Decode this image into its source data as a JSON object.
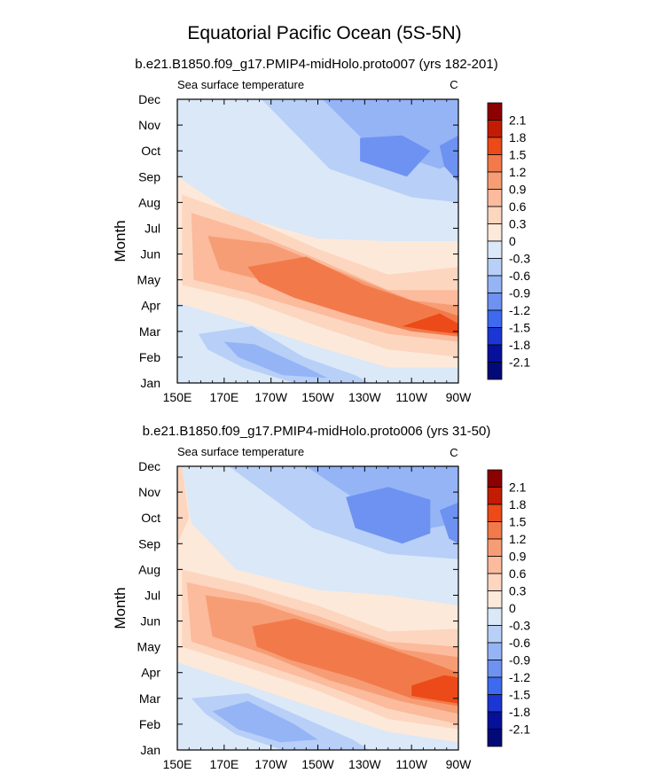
{
  "figure": {
    "title": "Equatorial Pacific Ocean (5S-5N)"
  },
  "chart_data": [
    {
      "type": "heatmap",
      "subtitle": "b.e21.B1850.f09_g17.PMIP4-midHolo.proto007 (yrs 182-201)",
      "variable_label": "Sea surface temperature",
      "units": "C",
      "ylabel": "Month",
      "xlabel": "",
      "x_ticks": [
        "150E",
        "170E",
        "170W",
        "150W",
        "130W",
        "110W",
        "90W"
      ],
      "x_tick_values": [
        150,
        170,
        190,
        210,
        230,
        250,
        270
      ],
      "xlim": [
        150,
        270
      ],
      "y_ticks": [
        "Jan",
        "Feb",
        "Mar",
        "Apr",
        "May",
        "Jun",
        "Jul",
        "Aug",
        "Sep",
        "Oct",
        "Nov",
        "Dec"
      ],
      "ylim": [
        1,
        12
      ],
      "colorbar_levels": [
        "2.1",
        "1.8",
        "1.5",
        "1.2",
        "0.9",
        "0.6",
        "0.3",
        "0",
        "-0.3",
        "-0.6",
        "-0.9",
        "-1.2",
        "-1.5",
        "-1.8",
        "-2.1"
      ],
      "regions": [
        {
          "level": -0.3,
          "outline": [
            [
              150,
              12
            ],
            [
              150,
              9
            ],
            [
              175,
              7.5
            ],
            [
              210,
              6.6
            ],
            [
              240,
              6.5
            ],
            [
              270,
              6.5
            ],
            [
              270,
              12
            ]
          ]
        },
        {
          "level": -0.6,
          "outline": [
            [
              186,
              12
            ],
            [
              215,
              9.3
            ],
            [
              250,
              8.2
            ],
            [
              270,
              8
            ],
            [
              270,
              12
            ]
          ]
        },
        {
          "level": -0.9,
          "outline": [
            [
              212,
              12
            ],
            [
              232,
              10.2
            ],
            [
              262,
              9.3
            ],
            [
              270,
              9.6
            ],
            [
              270,
              12
            ]
          ]
        },
        {
          "level": -1.2,
          "outline": [
            [
              228,
              10.5
            ],
            [
              246,
              10.6
            ],
            [
              258,
              10.0
            ],
            [
              248,
              9.0
            ],
            [
              228,
              9.6
            ]
          ]
        },
        {
          "level": -1.2,
          "outline": [
            [
              262,
              10.2
            ],
            [
              270,
              10.6
            ],
            [
              270,
              8.8
            ],
            [
              264,
              9.4
            ]
          ]
        },
        {
          "level": -0.3,
          "outline": [
            [
              150,
              1
            ],
            [
              150,
              4.1
            ],
            [
              180,
              3.3
            ],
            [
              210,
              2.4
            ],
            [
              240,
              1.6
            ],
            [
              270,
              1.6
            ],
            [
              270,
              1
            ]
          ]
        },
        {
          "level": -0.6,
          "outline": [
            [
              159,
              2.9
            ],
            [
              182,
              3.2
            ],
            [
              204,
              2.0
            ],
            [
              226,
              1.3
            ],
            [
              232,
              1
            ],
            [
              200,
              1
            ],
            [
              178,
              1.6
            ],
            [
              163,
              2.3
            ]
          ]
        },
        {
          "level": -0.9,
          "outline": [
            [
              170,
              2.6
            ],
            [
              183,
              2.5
            ],
            [
              205,
              1.6
            ],
            [
              214,
              1.2
            ],
            [
              195,
              1.3
            ],
            [
              176,
              2.0
            ]
          ]
        },
        {
          "level": 0.3,
          "outline": [
            [
              152,
              8.3
            ],
            [
              180,
              7.4
            ],
            [
              210,
              6.2
            ],
            [
              240,
              5.2
            ],
            [
              270,
              5.5
            ],
            [
              270,
              2.0
            ],
            [
              240,
              2.3
            ],
            [
              210,
              3.2
            ],
            [
              180,
              4.2
            ],
            [
              152,
              4.8
            ]
          ]
        },
        {
          "level": 0.6,
          "outline": [
            [
              156,
              7.6
            ],
            [
              180,
              6.9
            ],
            [
              210,
              5.8
            ],
            [
              240,
              4.6
            ],
            [
              270,
              4.6
            ],
            [
              270,
              2.6
            ],
            [
              240,
              2.9
            ],
            [
              210,
              3.7
            ],
            [
              180,
              4.5
            ],
            [
              157,
              5.0
            ]
          ]
        },
        {
          "level": 0.9,
          "outline": [
            [
              163,
              6.7
            ],
            [
              190,
              6.4
            ],
            [
              220,
              5.3
            ],
            [
              250,
              4.2
            ],
            [
              270,
              4.0
            ],
            [
              270,
              3.0
            ],
            [
              250,
              3.4
            ],
            [
              220,
              4.0
            ],
            [
              190,
              4.9
            ],
            [
              168,
              5.4
            ]
          ]
        },
        {
          "level": 1.2,
          "outline": [
            [
              180,
              5.5
            ],
            [
              205,
              5.9
            ],
            [
              230,
              4.8
            ],
            [
              260,
              3.9
            ],
            [
              270,
              3.6
            ],
            [
              270,
              2.8
            ],
            [
              250,
              3.0
            ],
            [
              225,
              3.6
            ],
            [
              200,
              4.3
            ],
            [
              185,
              4.9
            ]
          ]
        },
        {
          "level": 1.5,
          "outline": [
            [
              246,
              3.2
            ],
            [
              262,
              3.7
            ],
            [
              270,
              3.3
            ],
            [
              270,
              2.9
            ],
            [
              260,
              3.0
            ]
          ]
        }
      ]
    },
    {
      "type": "heatmap",
      "subtitle": "b.e21.B1850.f09_g17.PMIP4-midHolo.proto006 (yrs 31-50)",
      "variable_label": "Sea surface temperature",
      "units": "C",
      "ylabel": "Month",
      "xlabel": "",
      "x_ticks": [
        "150E",
        "170E",
        "170W",
        "150W",
        "130W",
        "110W",
        "90W"
      ],
      "x_tick_values": [
        150,
        170,
        190,
        210,
        230,
        250,
        270
      ],
      "xlim": [
        150,
        270
      ],
      "y_ticks": [
        "Jan",
        "Feb",
        "Mar",
        "Apr",
        "May",
        "Jun",
        "Jul",
        "Aug",
        "Sep",
        "Oct",
        "Nov",
        "Dec"
      ],
      "ylim": [
        1,
        12
      ],
      "colorbar_levels": [
        "2.1",
        "1.8",
        "1.5",
        "1.2",
        "0.9",
        "0.6",
        "0.3",
        "0",
        "-0.3",
        "-0.6",
        "-0.9",
        "-1.2",
        "-1.5",
        "-1.8",
        "-2.1"
      ],
      "regions": [
        {
          "level": 0.3,
          "outline": [
            [
              150,
              12
            ],
            [
              150,
              9
            ],
            [
              155,
              10
            ],
            [
              152,
              12
            ]
          ]
        },
        {
          "level": -0.3,
          "outline": [
            [
              152,
              12
            ],
            [
              156,
              9.8
            ],
            [
              175,
              8
            ],
            [
              210,
              7.2
            ],
            [
              240,
              7.0
            ],
            [
              270,
              6.6
            ],
            [
              270,
              12
            ]
          ]
        },
        {
          "level": -0.6,
          "outline": [
            [
              172,
              12
            ],
            [
              208,
              9.6
            ],
            [
              240,
              8.6
            ],
            [
              270,
              8.4
            ],
            [
              270,
              12
            ]
          ]
        },
        {
          "level": -0.9,
          "outline": [
            [
              205,
              12
            ],
            [
              228,
              10.6
            ],
            [
              258,
              9.6
            ],
            [
              270,
              9.8
            ],
            [
              270,
              12
            ]
          ]
        },
        {
          "level": -1.2,
          "outline": [
            [
              222,
              10.8
            ],
            [
              240,
              11.2
            ],
            [
              258,
              10.7
            ],
            [
              258,
              9.4
            ],
            [
              246,
              9.0
            ],
            [
              226,
              9.6
            ]
          ]
        },
        {
          "level": -1.2,
          "outline": [
            [
              262,
              10.3
            ],
            [
              270,
              10.6
            ],
            [
              270,
              9.0
            ],
            [
              266,
              9.2
            ]
          ]
        },
        {
          "level": -0.3,
          "outline": [
            [
              150,
              1
            ],
            [
              150,
              4.4
            ],
            [
              180,
              3.5
            ],
            [
              210,
              2.6
            ],
            [
              240,
              1.7
            ],
            [
              270,
              1.3
            ],
            [
              270,
              1
            ]
          ]
        },
        {
          "level": -0.6,
          "outline": [
            [
              156,
              3.0
            ],
            [
              180,
              3.2
            ],
            [
              205,
              2.2
            ],
            [
              225,
              1.4
            ],
            [
              232,
              1
            ],
            [
              195,
              1
            ],
            [
              175,
              1.6
            ],
            [
              162,
              2.4
            ]
          ]
        },
        {
          "level": -0.9,
          "outline": [
            [
              165,
              2.5
            ],
            [
              180,
              2.9
            ],
            [
              200,
              2.0
            ],
            [
              210,
              1.4
            ],
            [
              194,
              1.3
            ],
            [
              176,
              1.8
            ]
          ]
        },
        {
          "level": 0.3,
          "outline": [
            [
              152,
              8.0
            ],
            [
              180,
              7.4
            ],
            [
              210,
              6.6
            ],
            [
              240,
              5.6
            ],
            [
              270,
              5.7
            ],
            [
              270,
              1.8
            ],
            [
              240,
              2.2
            ],
            [
              210,
              3.3
            ],
            [
              180,
              4.2
            ],
            [
              152,
              5.0
            ]
          ]
        },
        {
          "level": 0.6,
          "outline": [
            [
              154,
              7.5
            ],
            [
              180,
              7.0
            ],
            [
              210,
              6.2
            ],
            [
              240,
              5.2
            ],
            [
              270,
              5.0
            ],
            [
              270,
              2.0
            ],
            [
              240,
              2.6
            ],
            [
              210,
              3.6
            ],
            [
              180,
              4.5
            ],
            [
              156,
              5.2
            ]
          ]
        },
        {
          "level": 0.9,
          "outline": [
            [
              162,
              7.0
            ],
            [
              185,
              6.7
            ],
            [
              215,
              5.8
            ],
            [
              245,
              4.9
            ],
            [
              270,
              4.6
            ],
            [
              270,
              2.4
            ],
            [
              245,
              2.9
            ],
            [
              215,
              3.7
            ],
            [
              188,
              4.7
            ],
            [
              165,
              5.4
            ]
          ]
        },
        {
          "level": 1.2,
          "outline": [
            [
              182,
              5.8
            ],
            [
              200,
              6.1
            ],
            [
              225,
              5.4
            ],
            [
              255,
              4.5
            ],
            [
              270,
              4.0
            ],
            [
              270,
              2.7
            ],
            [
              250,
              3.0
            ],
            [
              225,
              3.8
            ],
            [
              198,
              4.5
            ],
            [
              184,
              5.0
            ]
          ]
        },
        {
          "level": 1.5,
          "outline": [
            [
              250,
              3.5
            ],
            [
              264,
              3.9
            ],
            [
              270,
              3.8
            ],
            [
              270,
              2.8
            ],
            [
              256,
              3.0
            ],
            [
              250,
              3.1
            ]
          ]
        }
      ]
    }
  ],
  "colors": {
    "2.1": "#8c0000",
    "1.8": "#c21d02",
    "1.5": "#ec4a19",
    "1.2": "#f27a4a",
    "0.9": "#f79d75",
    "0.6": "#fbbb9c",
    "0.3": "#fdd6c0",
    "0": "#fde9da",
    "-0.3": "#dae8f8",
    "-0.6": "#b8cff7",
    "-0.9": "#94b4f6",
    "-1.2": "#6e92f1",
    "-1.5": "#3d6aef",
    "-1.8": "#1b36d2",
    "-2.1": "#06109a",
    "-2.4": "#020a78"
  }
}
